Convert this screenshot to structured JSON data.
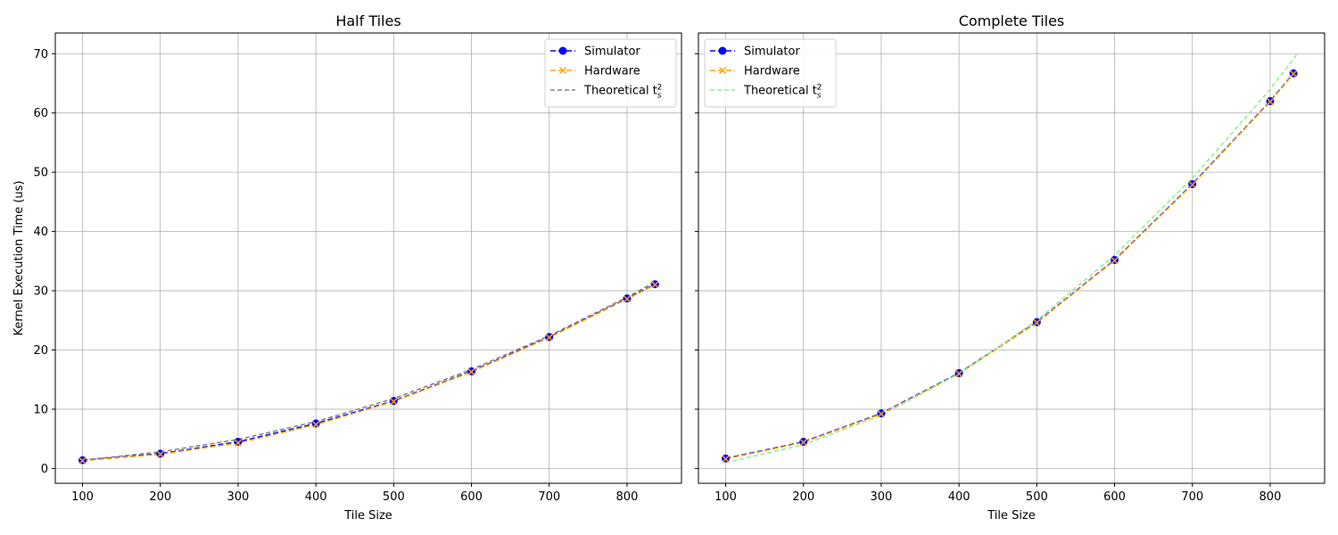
{
  "chart_data": [
    {
      "type": "line",
      "title": "Half Tiles",
      "xlabel": "Tile Size",
      "ylabel": "Kernel Execution Time (us)",
      "xlim": [
        65,
        870
      ],
      "ylim": [
        -2.5,
        73.5
      ],
      "xticks": [
        100,
        200,
        300,
        400,
        500,
        600,
        700,
        800
      ],
      "yticks": [
        0,
        10,
        20,
        30,
        40,
        50,
        60,
        70
      ],
      "grid": true,
      "legend_position": "top-right",
      "series": [
        {
          "name": "Simulator",
          "color": "#0000ff",
          "marker": "circle",
          "x": [
            100,
            200,
            300,
            400,
            500,
            600,
            700,
            800,
            836
          ],
          "y": [
            1.4,
            2.5,
            4.5,
            7.6,
            11.4,
            16.4,
            22.2,
            28.7,
            31.1
          ]
        },
        {
          "name": "Hardware",
          "color": "#ffa500",
          "marker": "x",
          "x": [
            100,
            200,
            300,
            400,
            500,
            600,
            700,
            800,
            836
          ],
          "y": [
            1.3,
            2.4,
            4.3,
            7.4,
            11.3,
            16.3,
            22.1,
            28.6,
            31.0
          ]
        },
        {
          "name": "Theoretical t_s^2",
          "color": "#808080",
          "marker": "none",
          "x": [
            100,
            200,
            300,
            400,
            500,
            600,
            700,
            800,
            836
          ],
          "y": [
            1.4,
            2.8,
            4.9,
            7.9,
            11.8,
            16.7,
            22.4,
            28.9,
            31.5
          ]
        }
      ]
    },
    {
      "type": "line",
      "title": "Complete Tiles",
      "xlabel": "Tile Size",
      "ylabel": "",
      "xlim": [
        65,
        870
      ],
      "ylim": [
        -2.5,
        73.5
      ],
      "xticks": [
        100,
        200,
        300,
        400,
        500,
        600,
        700,
        800
      ],
      "yticks": [
        0,
        10,
        20,
        30,
        40,
        50,
        60,
        70
      ],
      "grid": true,
      "legend_position": "top-left",
      "series": [
        {
          "name": "Simulator",
          "color": "#0000ff",
          "marker": "circle",
          "x": [
            100,
            200,
            300,
            400,
            500,
            600,
            700,
            800,
            830
          ],
          "y": [
            1.7,
            4.5,
            9.3,
            16.1,
            24.7,
            35.2,
            48.0,
            62.0,
            66.7
          ]
        },
        {
          "name": "Hardware",
          "color": "#ffa500",
          "marker": "x",
          "x": [
            100,
            200,
            300,
            400,
            500,
            600,
            700,
            800,
            830
          ],
          "y": [
            1.6,
            4.4,
            9.2,
            16.0,
            24.6,
            35.1,
            47.9,
            61.9,
            66.6
          ]
        },
        {
          "name": "Theoretical t_s^2",
          "color": "#90ee90",
          "marker": "none",
          "x": [
            100,
            200,
            300,
            400,
            500,
            600,
            700,
            800,
            835
          ],
          "y": [
            1.0,
            4.0,
            9.0,
            16.0,
            25.0,
            36.0,
            49.0,
            64.0,
            70.0
          ]
        }
      ]
    }
  ]
}
